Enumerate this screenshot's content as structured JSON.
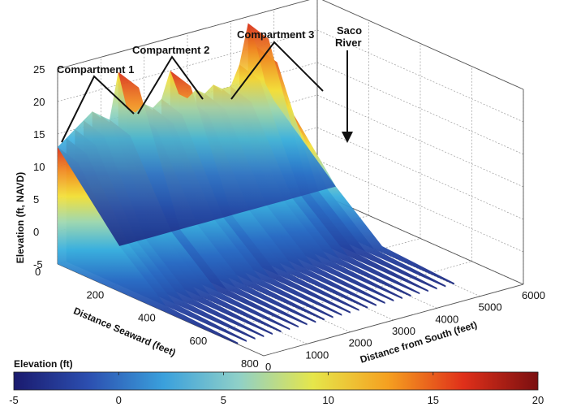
{
  "chart_data": {
    "type": "surface3d",
    "title": "",
    "z_axis": {
      "label": "Elevation (ft, NAVD)",
      "ticks": [
        -5,
        0,
        5,
        10,
        15,
        20,
        25
      ],
      "range": [
        -5,
        25
      ]
    },
    "x_axis": {
      "label": "Distance from South (feet)",
      "ticks": [
        0,
        1000,
        2000,
        3000,
        4000,
        5000,
        6000
      ],
      "range": [
        0,
        6000
      ]
    },
    "y_axis": {
      "label": "Distance Seaward (feet)",
      "ticks": [
        0,
        200,
        400,
        600,
        800
      ],
      "range": [
        0,
        800
      ]
    },
    "grid": true,
    "colorbar": {
      "label": "Elevation (ft)",
      "ticks": [
        -5,
        0,
        5,
        10,
        15,
        20
      ],
      "range": [
        -5,
        20
      ],
      "colormap": [
        "#1a1a6e",
        "#2c4fb0",
        "#3aa0dc",
        "#8fd0c8",
        "#e6e64a",
        "#f5a020",
        "#e0301a",
        "#7a0f10"
      ]
    },
    "annotations": [
      {
        "text": "Compartment 1"
      },
      {
        "text": "Compartment 2"
      },
      {
        "text": "Compartment 3"
      },
      {
        "text": "Saco",
        "text2": "River"
      }
    ],
    "profile": {
      "x": [
        0,
        200,
        400,
        600,
        800,
        1000,
        1200,
        1400,
        1600,
        1800,
        2000,
        2200,
        2400,
        2600,
        2800,
        3000,
        3200,
        3400,
        3600,
        3800,
        4000,
        4200,
        4400,
        4600,
        4800,
        5000
      ],
      "crest_elevation": [
        13,
        14,
        15,
        16,
        17,
        16,
        15,
        22,
        16,
        15,
        16,
        15,
        16,
        20,
        16,
        15,
        16,
        15,
        16,
        15,
        15,
        18,
        24,
        20,
        14,
        11
      ]
    }
  }
}
